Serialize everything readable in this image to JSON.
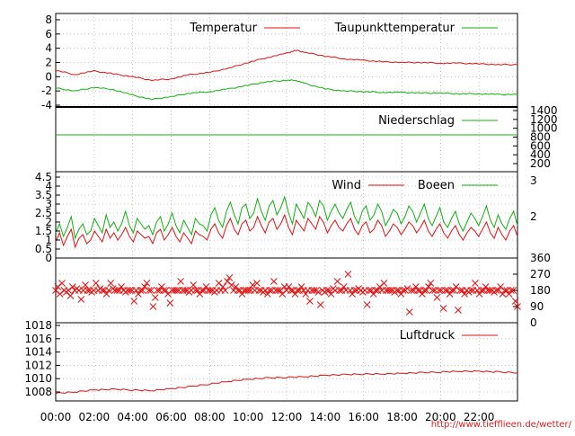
{
  "page": {
    "source_url": "http://www.tiefflieen.de/wetter/"
  },
  "colors": {
    "red": "#e01010",
    "green": "#10b010",
    "axis": "#000000",
    "grid": "#9a9a9a",
    "url": "#e21b1b"
  },
  "time_axis": {
    "ticks": [
      "00:00",
      "02:00",
      "04:00",
      "06:00",
      "08:00",
      "10:00",
      "12:00",
      "14:00",
      "16:00",
      "18:00",
      "20:00",
      "22:00"
    ],
    "range_hours": [
      0,
      24
    ]
  },
  "chart_data": [
    {
      "type": "line",
      "panel": "temperature",
      "ylim": [
        -4,
        8.5
      ],
      "yticks_left": [
        "8",
        "6",
        "4",
        "2",
        "0",
        "-2",
        "-4"
      ],
      "grid": true,
      "legend_position": "top-right",
      "x": [
        0,
        1,
        2,
        3,
        4,
        5,
        6,
        7,
        8,
        9,
        10,
        11,
        12,
        12.5,
        13,
        14,
        15,
        16,
        17,
        18,
        19,
        20,
        21,
        22,
        23,
        24
      ],
      "series": [
        {
          "name": "Temperatur",
          "color": "red",
          "values": [
            0.9,
            0.3,
            0.8,
            0.4,
            0.0,
            -0.5,
            -0.3,
            0.3,
            0.6,
            1.2,
            2.0,
            2.7,
            3.3,
            3.7,
            3.4,
            2.9,
            2.5,
            2.3,
            2.1,
            2.0,
            2.0,
            1.9,
            1.9,
            1.8,
            1.7,
            1.7
          ]
        },
        {
          "name": "Taupunkttemperatur",
          "color": "green",
          "values": [
            -1.6,
            -2.0,
            -1.5,
            -1.8,
            -2.6,
            -3.2,
            -2.8,
            -2.3,
            -2.1,
            -1.7,
            -1.2,
            -0.7,
            -0.5,
            -0.5,
            -1.0,
            -1.7,
            -2.0,
            -2.1,
            -2.2,
            -2.2,
            -2.3,
            -2.3,
            -2.4,
            -2.4,
            -2.5,
            -2.5
          ]
        }
      ]
    },
    {
      "type": "line",
      "panel": "precipitation",
      "ylim": [
        0,
        1400
      ],
      "yticks_right": [
        "1400",
        "1200",
        "1000",
        "800",
        "600",
        "400",
        "200"
      ],
      "legend_position": "top-right",
      "x": [
        0,
        24
      ],
      "series": [
        {
          "name": "Niederschlag",
          "color": "green",
          "values": [
            850,
            850
          ]
        }
      ]
    },
    {
      "type": "line",
      "panel": "wind",
      "ylim": [
        0,
        4.5
      ],
      "yticks_left": [
        "4.5",
        "4",
        "3.5",
        "3",
        "2.5",
        "2",
        "1.5",
        "1",
        "0.5",
        "0"
      ],
      "yticks_right": [
        "3",
        "2"
      ],
      "legend_position": "top-right",
      "x_start": 0,
      "x_end": 24,
      "series": [
        {
          "name": "Wind",
          "color": "red",
          "values": [
            0.9,
            1.4,
            0.7,
            1.2,
            1.6,
            0.6,
            1.1,
            1.3,
            0.8,
            1.0,
            1.5,
            1.2,
            0.9,
            1.6,
            1.1,
            1.4,
            1.0,
            1.3,
            1.7,
            1.2,
            0.9,
            1.5,
            1.3,
            1.1,
            1.2,
            0.8,
            1.4,
            1.6,
            1.0,
            1.3,
            1.7,
            1.2,
            0.9,
            1.4,
            1.1,
            0.8,
            1.5,
            1.3,
            1.2,
            1.0,
            1.6,
            1.9,
            1.4,
            1.1,
            1.8,
            2.2,
            1.6,
            1.3,
            1.9,
            2.1,
            1.5,
            1.7,
            2.3,
            1.8,
            1.4,
            2.0,
            2.2,
            1.6,
            1.9,
            2.4,
            1.7,
            1.3,
            2.1,
            1.8,
            1.5,
            2.2,
            1.9,
            1.6,
            2.3,
            2.0,
            1.4,
            1.8,
            2.1,
            1.7,
            1.5,
            1.9,
            2.2,
            1.6,
            1.3,
            1.8,
            2.0,
            1.4,
            1.6,
            2.1,
            1.8,
            1.2,
            1.5,
            1.9,
            1.7,
            1.3,
            1.6,
            2.0,
            1.8,
            1.4,
            1.7,
            2.1,
            1.5,
            1.2,
            1.6,
            1.9,
            1.4,
            1.1,
            1.5,
            1.8,
            1.3,
            1.0,
            1.4,
            1.7,
            1.5,
            1.2,
            1.6,
            2.0,
            1.4,
            1.1,
            1.7,
            1.3,
            1.0,
            1.5,
            1.8,
            1.2
          ]
        },
        {
          "name": "Boeen",
          "color": "green",
          "values": [
            1.4,
            1.9,
            1.2,
            1.7,
            2.3,
            1.1,
            1.6,
            1.9,
            1.3,
            1.5,
            2.2,
            1.8,
            1.4,
            2.4,
            1.7,
            2.0,
            1.5,
            1.9,
            2.6,
            1.8,
            1.4,
            2.2,
            1.9,
            1.6,
            1.8,
            1.3,
            2.0,
            2.3,
            1.5,
            1.9,
            2.5,
            1.8,
            1.4,
            2.1,
            1.7,
            1.3,
            2.2,
            1.9,
            1.8,
            1.5,
            2.4,
            2.8,
            2.1,
            1.7,
            2.6,
            3.1,
            2.4,
            1.9,
            2.8,
            3.0,
            2.2,
            2.5,
            3.3,
            2.6,
            2.1,
            2.9,
            3.2,
            2.4,
            2.8,
            3.4,
            2.5,
            1.9,
            3.0,
            2.6,
            2.2,
            3.1,
            2.8,
            2.3,
            3.2,
            2.9,
            2.1,
            2.6,
            3.0,
            2.5,
            2.2,
            2.7,
            3.1,
            2.3,
            1.9,
            2.6,
            2.9,
            2.1,
            2.4,
            3.0,
            2.6,
            1.8,
            2.2,
            2.7,
            2.5,
            1.9,
            2.3,
            2.9,
            2.6,
            2.0,
            2.5,
            3.0,
            2.2,
            1.8,
            2.3,
            2.8,
            2.0,
            1.7,
            2.2,
            2.6,
            1.9,
            1.5,
            2.0,
            2.5,
            2.2,
            1.8,
            2.3,
            2.9,
            2.1,
            1.7,
            2.4,
            1.9,
            1.6,
            2.2,
            2.6,
            1.8
          ]
        }
      ]
    },
    {
      "type": "scatter",
      "panel": "wind_direction",
      "ylim": [
        0,
        360
      ],
      "yticks_right": [
        "360",
        "270",
        "180",
        "90",
        "0"
      ],
      "marker": "x",
      "color": "red",
      "x_start": 0,
      "x_end": 24,
      "values": [
        180,
        200,
        160,
        220,
        180,
        170,
        180,
        150,
        200,
        180,
        190,
        180,
        130,
        180,
        210,
        180,
        180,
        170,
        180,
        220,
        180,
        190,
        180,
        180,
        160,
        180,
        220,
        190,
        180,
        180,
        180,
        200,
        180,
        170,
        180,
        180,
        180,
        120,
        180,
        160,
        180,
        180,
        200,
        220,
        180,
        180,
        90,
        140,
        180,
        180,
        200,
        180,
        180,
        160,
        110,
        180,
        180,
        180,
        180,
        230,
        180,
        180,
        180,
        170,
        180,
        210,
        180,
        180,
        160,
        180,
        180,
        200,
        180,
        180,
        180,
        170,
        180,
        220,
        180,
        200,
        180,
        230,
        250,
        210,
        180,
        200,
        180,
        180,
        160,
        180,
        180,
        180,
        180,
        210,
        180,
        220,
        180,
        180,
        170,
        180,
        160,
        180,
        180,
        230,
        180,
        180,
        180,
        160,
        200,
        180,
        200,
        180,
        180,
        160,
        180,
        180,
        200,
        180,
        160,
        180,
        120,
        180,
        180,
        180,
        170,
        100,
        180,
        170,
        180,
        180,
        160,
        190,
        180,
        230,
        180,
        180,
        200,
        180,
        270,
        180,
        160,
        180,
        180,
        190,
        180,
        170,
        180,
        100,
        180,
        180,
        160,
        180,
        180,
        200,
        180,
        220,
        180,
        180,
        180,
        180,
        170,
        180,
        180,
        160,
        180,
        180,
        190,
        60,
        180,
        180,
        200,
        180,
        180,
        160,
        180,
        180,
        200,
        220,
        180,
        180,
        140,
        180,
        180,
        80,
        180,
        180,
        160,
        180,
        180,
        200,
        70,
        180,
        180,
        160,
        180,
        170,
        180,
        180,
        220,
        180,
        160,
        180,
        180,
        200,
        180,
        180,
        180,
        170,
        180,
        180,
        200,
        160,
        180,
        180,
        160,
        180,
        180,
        120,
        90
      ]
    },
    {
      "type": "line",
      "panel": "pressure",
      "ylim": [
        1007,
        1018.5
      ],
      "yticks_left": [
        "1018",
        "1016",
        "1014",
        "1012",
        "1010",
        "1008"
      ],
      "legend_position": "top-right",
      "x": [
        0,
        1,
        2,
        3,
        4,
        5,
        6,
        7,
        8,
        9,
        10,
        11,
        12,
        13,
        14,
        15,
        16,
        17,
        18,
        19,
        20,
        21,
        22,
        23,
        24
      ],
      "series": [
        {
          "name": "Luftdruck",
          "color": "red",
          "values": [
            1007.8,
            1008.0,
            1008.3,
            1008.4,
            1008.3,
            1008.2,
            1008.5,
            1008.8,
            1009.2,
            1009.6,
            1009.9,
            1010.1,
            1010.2,
            1010.3,
            1010.5,
            1010.6,
            1010.7,
            1010.7,
            1010.8,
            1010.9,
            1011.0,
            1011.1,
            1011.1,
            1011.0,
            1010.9
          ]
        }
      ]
    }
  ]
}
